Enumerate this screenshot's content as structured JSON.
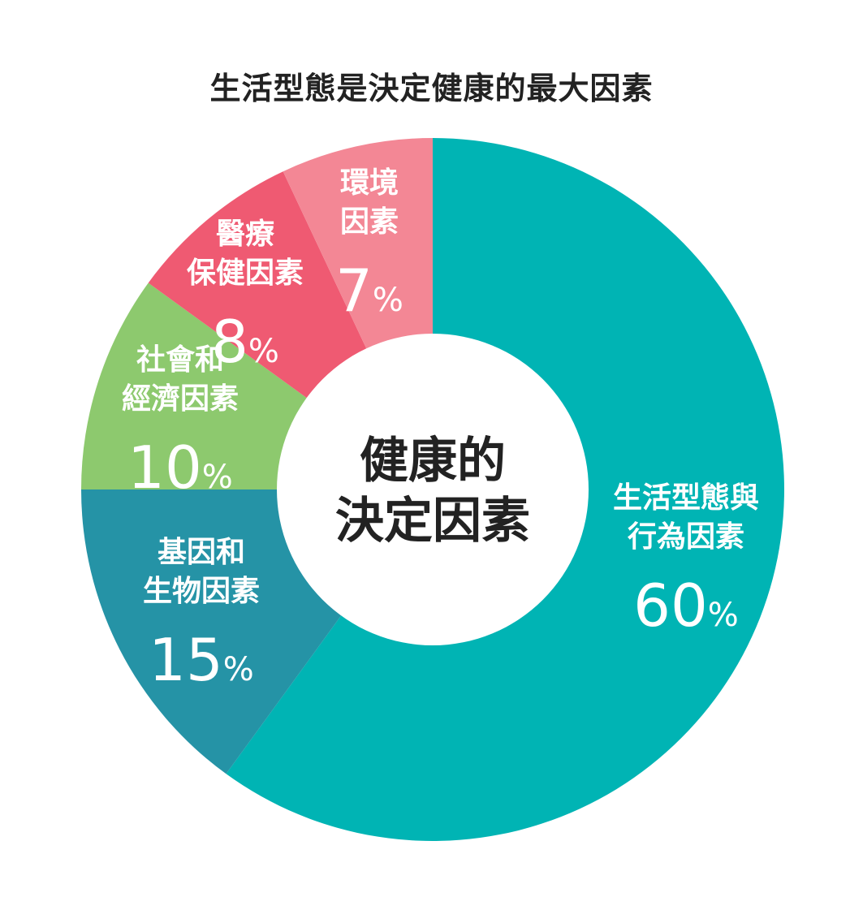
{
  "chart_data": {
    "type": "pie",
    "title": "生活型態是決定健康的最大因素",
    "center_label": [
      "健康的",
      "決定因素"
    ],
    "slices": [
      {
        "label": [
          "生活型態與",
          "行為因素"
        ],
        "value": 60,
        "value_text": "60",
        "unit": "%",
        "color": "#00b4b4"
      },
      {
        "label": [
          "基因和",
          "生物因素"
        ],
        "value": 15,
        "value_text": "15",
        "unit": "%",
        "color": "#2593a6"
      },
      {
        "label": [
          "社會和",
          "經濟因素"
        ],
        "value": 10,
        "value_text": "10",
        "unit": "%",
        "color": "#8dc96e"
      },
      {
        "label": [
          "醫療",
          "保健因素"
        ],
        "value": 8,
        "value_text": "8",
        "unit": "%",
        "color": "#ef5a72"
      },
      {
        "label": [
          "環境",
          "因素"
        ],
        "value": 7,
        "value_text": "7",
        "unit": "%",
        "color": "#f38795"
      }
    ]
  }
}
